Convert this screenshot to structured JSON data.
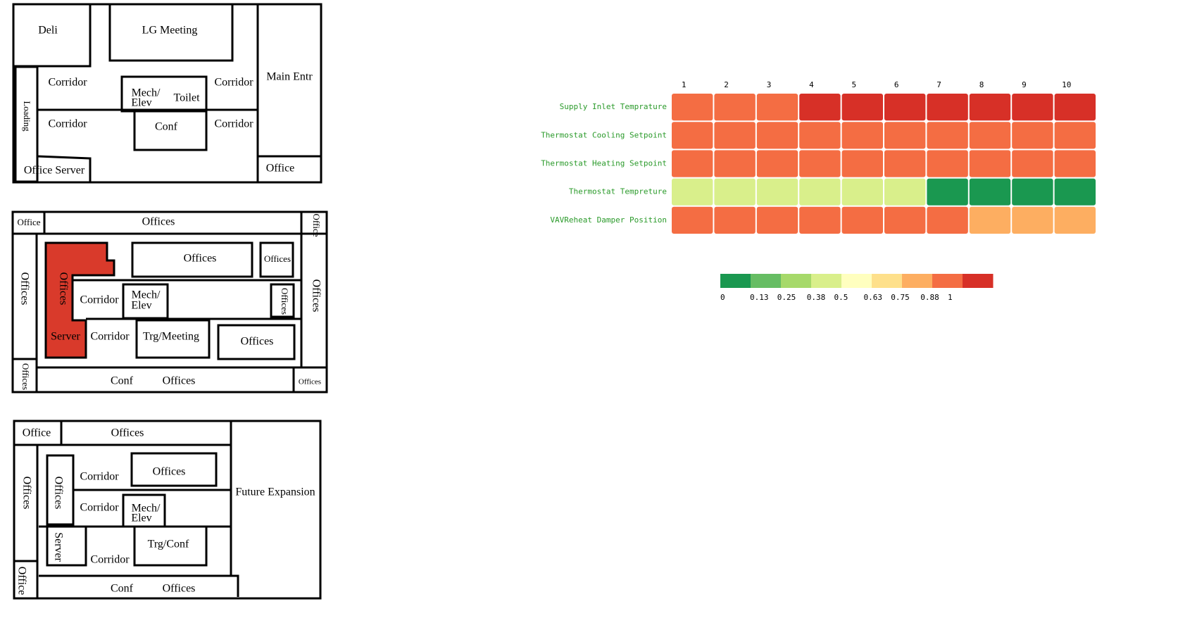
{
  "floor_plans": [
    {
      "labels": [
        "Deli",
        "LG Meeting",
        "Main Entr",
        "Corridor",
        "Mech/",
        "Elev",
        "Toilet",
        "Corridor",
        "Loading",
        "Corridor",
        "Conf",
        "Corridor",
        "Office",
        "Office Server"
      ]
    },
    {
      "labels": [
        "Office",
        "Offices",
        "Office",
        "Offices",
        "Offices",
        "Offices",
        "Offices",
        "Corridor",
        "Mech/",
        "Elev",
        "Offices",
        "Offices",
        "Server",
        "Corridor",
        "Trg/Meeting",
        "Offices",
        "Offices",
        "Conf",
        "Offices",
        "Offices"
      ]
    },
    {
      "labels": [
        "Office",
        "Offices",
        "Future Expansion",
        "Offices",
        "Offices",
        "Corridor",
        "Offices",
        "Corridor",
        "Mech/",
        "Elev",
        "Server",
        "Trg/Conf",
        "Corridor",
        "Office",
        "Conf",
        "Offices"
      ]
    }
  ],
  "chart_data": {
    "type": "heatmap",
    "x": [
      1,
      2,
      3,
      4,
      5,
      6,
      7,
      8,
      9,
      10
    ],
    "categories": [
      "Supply Inlet Temprature",
      "Thermostat Cooling Setpoint",
      "Thermostat Heating Setpoint",
      "Thermostat Tempreture",
      "VAVReheat Damper Position"
    ],
    "values": [
      [
        0.88,
        0.88,
        0.88,
        1,
        1,
        1,
        1,
        1,
        1,
        1
      ],
      [
        0.88,
        0.88,
        0.88,
        0.88,
        0.88,
        0.88,
        0.88,
        0.88,
        0.88,
        0.88
      ],
      [
        0.88,
        0.88,
        0.88,
        0.88,
        0.88,
        0.88,
        0.88,
        0.88,
        0.88,
        0.88
      ],
      [
        0.38,
        0.38,
        0.38,
        0.38,
        0.38,
        0.38,
        0,
        0,
        0,
        0
      ],
      [
        0.88,
        0.88,
        0.88,
        0.88,
        0.88,
        0.88,
        0.88,
        0.75,
        0.75,
        0.75
      ]
    ],
    "colorscale": [
      "#1a9850",
      "#66bd63",
      "#a6d96a",
      "#d9ef8b",
      "#ffffbf",
      "#fee08b",
      "#fdae61",
      "#f46d43",
      "#d73027"
    ],
    "colorbar_ticks": [
      0,
      0.13,
      0.25,
      0.38,
      0.5,
      0.63,
      0.75,
      0.88,
      1
    ]
  }
}
